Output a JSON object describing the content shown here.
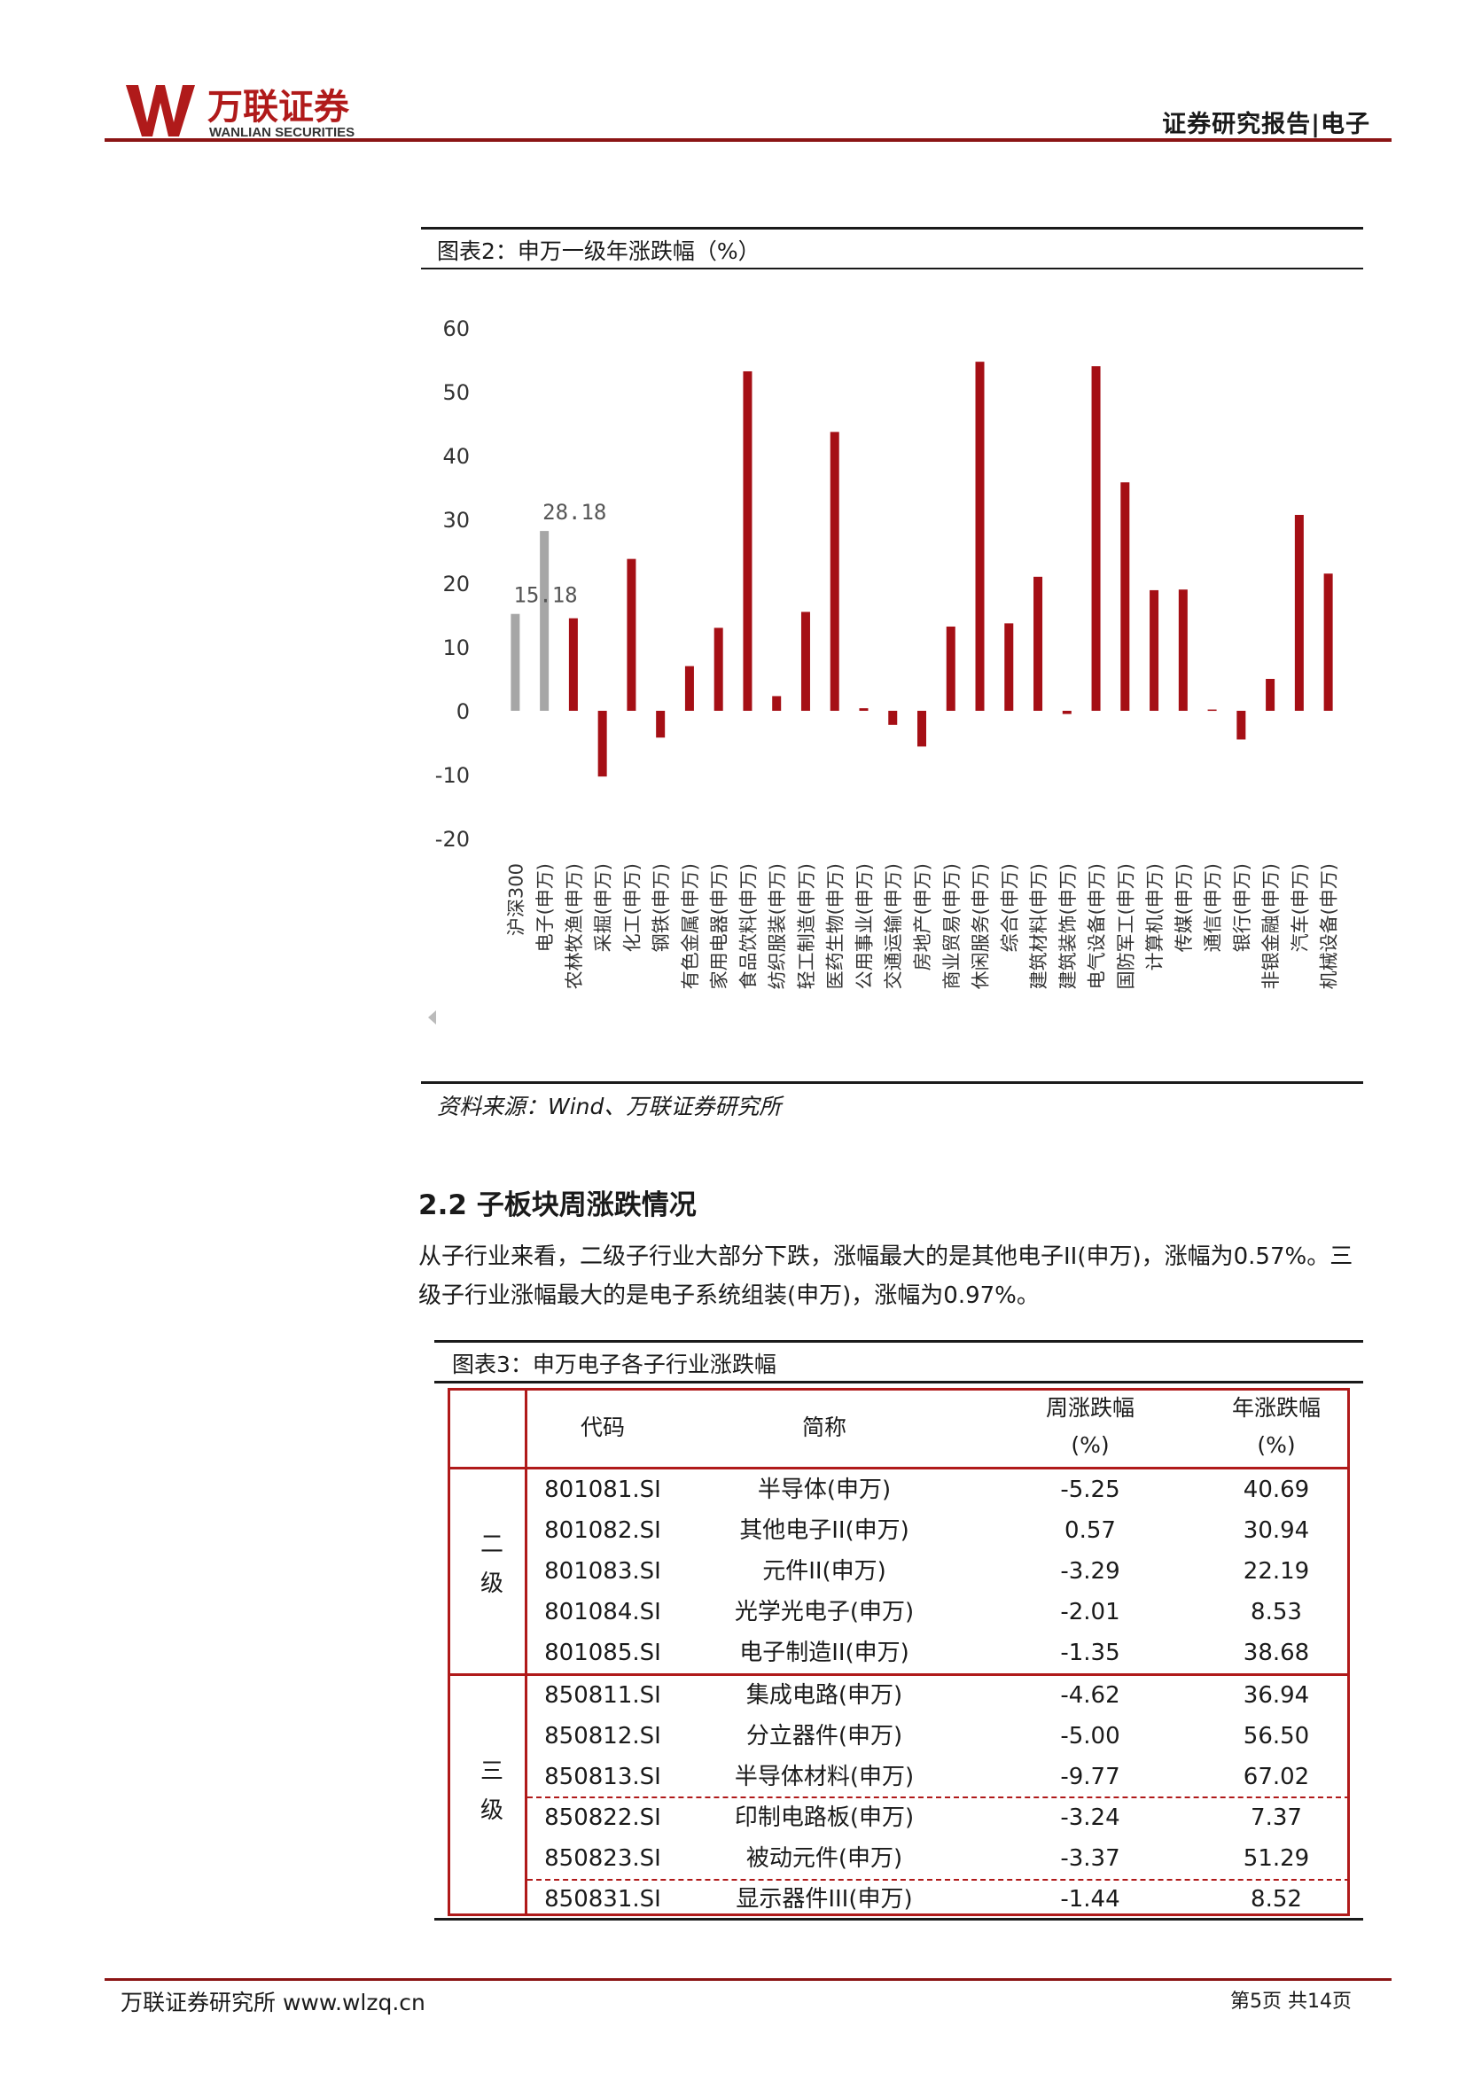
{
  "header": {
    "logo_cn": "万联证券",
    "logo_en": "WANLIAN SECURITIES",
    "right_text": "证券研究报告|电子"
  },
  "figure2": {
    "caption": "图表2：申万一级年涨跌幅（%）",
    "source": "资料来源：Wind、万联证券研究所"
  },
  "chart_data": {
    "type": "bar",
    "title": "",
    "xlabel": "",
    "ylabel": "",
    "ylim": [
      -20,
      60
    ],
    "yticks": [
      60,
      50,
      40,
      30,
      20,
      10,
      0,
      -10,
      -20
    ],
    "grid": false,
    "categories": [
      "沪深300",
      "电子(申万)",
      "农林牧渔(申万)",
      "采掘(申万)",
      "化工(申万)",
      "钢铁(申万)",
      "有色金属(申万)",
      "家用电器(申万)",
      "食品饮料(申万)",
      "纺织服装(申万)",
      "轻工制造(申万)",
      "医药生物(申万)",
      "公用事业(申万)",
      "交通运输(申万)",
      "房地产(申万)",
      "商业贸易(申万)",
      "休闲服务(申万)",
      "综合(申万)",
      "建筑材料(申万)",
      "建筑装饰(申万)",
      "电气设备(申万)",
      "国防军工(申万)",
      "计算机(申万)",
      "传媒(申万)",
      "通信(申万)",
      "银行(申万)",
      "非银金融(申万)",
      "汽车(申万)",
      "机械设备(申万)"
    ],
    "values": [
      15.18,
      28.18,
      14.5,
      -10.3,
      23.8,
      -4.2,
      7.0,
      13.0,
      53.2,
      2.3,
      15.5,
      43.7,
      0.4,
      -2.2,
      -5.6,
      13.2,
      54.7,
      13.7,
      21.0,
      -0.5,
      54.0,
      35.8,
      18.9,
      19.0,
      0.2,
      -4.5,
      5.0,
      30.7,
      21.5
    ],
    "colors": [
      "#a6a6a6",
      "#a6a6a6",
      "#a50f15",
      "#a50f15",
      "#a50f15",
      "#a50f15",
      "#a50f15",
      "#a50f15",
      "#a50f15",
      "#a50f15",
      "#a50f15",
      "#a50f15",
      "#a50f15",
      "#a50f15",
      "#a50f15",
      "#a50f15",
      "#a50f15",
      "#a50f15",
      "#a50f15",
      "#a50f15",
      "#a50f15",
      "#a50f15",
      "#a50f15",
      "#a50f15",
      "#a50f15",
      "#a50f15",
      "#a50f15",
      "#a50f15",
      "#a50f15"
    ],
    "data_labels": [
      {
        "index": 0,
        "text": "15.18"
      },
      {
        "index": 1,
        "text": "28.18"
      }
    ]
  },
  "section": {
    "title": "2.2 子板块周涨跌情况",
    "paragraph": "从子行业来看，二级子行业大部分下跌，涨幅最大的是其他电子II(申万)，涨幅为0.57%。三级子行业涨幅最大的是电子系统组装(申万)，涨幅为0.97%。"
  },
  "figure3": {
    "caption": "图表3：申万电子各子行业涨跌幅",
    "headers": {
      "code": "代码",
      "name": "简称",
      "week": "周涨跌幅",
      "week_unit": "(%)",
      "year": "年涨跌幅",
      "year_unit": "(%)"
    },
    "group2_label": [
      "二",
      "级"
    ],
    "group3_label": [
      "三",
      "级"
    ],
    "rows": [
      {
        "code": "801081.SI",
        "name": "半导体(申万)",
        "week": "-5.25",
        "year": "40.69"
      },
      {
        "code": "801082.SI",
        "name": "其他电子II(申万)",
        "week": "0.57",
        "year": "30.94"
      },
      {
        "code": "801083.SI",
        "name": "元件II(申万)",
        "week": "-3.29",
        "year": "22.19"
      },
      {
        "code": "801084.SI",
        "name": "光学光电子(申万)",
        "week": "-2.01",
        "year": "8.53"
      },
      {
        "code": "801085.SI",
        "name": "电子制造II(申万)",
        "week": "-1.35",
        "year": "38.68"
      },
      {
        "code": "850811.SI",
        "name": "集成电路(申万)",
        "week": "-4.62",
        "year": "36.94"
      },
      {
        "code": "850812.SI",
        "name": "分立器件(申万)",
        "week": "-5.00",
        "year": "56.50"
      },
      {
        "code": "850813.SI",
        "name": "半导体材料(申万)",
        "week": "-9.77",
        "year": "67.02"
      },
      {
        "code": "850822.SI",
        "name": "印制电路板(申万)",
        "week": "-3.24",
        "year": "7.37"
      },
      {
        "code": "850823.SI",
        "name": "被动元件(申万)",
        "week": "-3.37",
        "year": "51.29"
      },
      {
        "code": "850831.SI",
        "name": "显示器件III(申万)",
        "week": "-1.44",
        "year": "8.52"
      }
    ]
  },
  "footer": {
    "left": "万联证券研究所 www.wlzq.cn",
    "page_prefix": "第",
    "page_number": "5",
    "page_mid": "页 共",
    "page_total": "14",
    "page_suffix": "页"
  }
}
